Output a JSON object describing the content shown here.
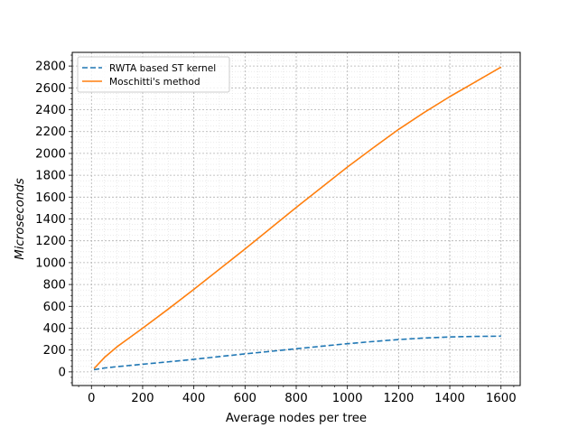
{
  "chart_data": {
    "type": "line",
    "title": "",
    "xlabel": "Average nodes per tree",
    "ylabel": "Microseconds",
    "xlim": [
      -75,
      1675
    ],
    "ylim": [
      -125,
      2925
    ],
    "x_ticks": [
      0,
      200,
      400,
      600,
      800,
      1000,
      1200,
      1400,
      1600
    ],
    "y_ticks": [
      0,
      200,
      400,
      600,
      800,
      1000,
      1200,
      1400,
      1600,
      1800,
      2000,
      2200,
      2400,
      2600,
      2800
    ],
    "grid": true,
    "minor_grid": true,
    "legend_position": "upper-left",
    "series": [
      {
        "name": "RWTA based ST kernel",
        "color": "#1f77b4",
        "style": "dashed",
        "x": [
          10,
          50,
          100,
          200,
          300,
          400,
          500,
          600,
          700,
          800,
          900,
          1000,
          1100,
          1200,
          1300,
          1400,
          1500,
          1600
        ],
        "y": [
          20,
          35,
          48,
          70,
          92,
          115,
          140,
          165,
          188,
          212,
          235,
          258,
          278,
          296,
          310,
          320,
          325,
          327
        ]
      },
      {
        "name": "Moschitti's method",
        "color": "#ff7f0e",
        "style": "solid",
        "x": [
          10,
          50,
          100,
          200,
          300,
          400,
          500,
          600,
          700,
          800,
          900,
          1000,
          1100,
          1200,
          1300,
          1400,
          1500,
          1600
        ],
        "y": [
          30,
          130,
          230,
          400,
          575,
          755,
          940,
          1125,
          1315,
          1505,
          1690,
          1875,
          2050,
          2220,
          2375,
          2520,
          2655,
          2790
        ]
      }
    ]
  }
}
